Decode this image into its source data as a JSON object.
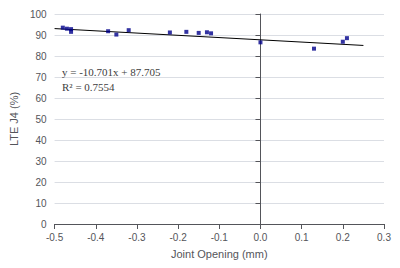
{
  "chart_data": {
    "type": "scatter",
    "xlabel": "Joint Opening (mm)",
    "ylabel": "LTE J4 (%)",
    "annotations": [
      "y = -10.701x + 87.705",
      "R² = 0.7554"
    ],
    "series": [
      {
        "type": "scatter",
        "color": "#00008B",
        "marker": "square",
        "x": [
          -0.48,
          -0.47,
          -0.46,
          -0.46,
          -0.37,
          -0.35,
          -0.32,
          -0.22,
          -0.18,
          -0.15,
          -0.13,
          -0.12,
          0.0,
          0.13,
          0.2,
          0.21
        ],
        "values": [
          93.5,
          93.0,
          91.5,
          92.8,
          91.8,
          90.2,
          92.3,
          91.2,
          91.5,
          91.0,
          91.3,
          90.8,
          86.5,
          83.5,
          86.8,
          88.5
        ]
      },
      {
        "type": "line",
        "color": "#000000",
        "line_style": "solid",
        "x": [
          -0.5,
          0.25
        ],
        "values": [
          93.0555,
          85.02975
        ]
      }
    ],
    "xlim": [
      -0.5,
      0.3
    ],
    "xticks": [
      -0.5,
      -0.4,
      -0.3,
      -0.2,
      -0.1,
      {
        "value": 0,
        "label": "0.0"
      },
      0.1,
      0.2,
      0.3
    ],
    "ylim": [
      0,
      100
    ],
    "yticks": [
      0,
      10,
      20,
      30,
      40,
      50,
      60,
      70,
      80,
      90,
      100
    ],
    "grid": true
  }
}
